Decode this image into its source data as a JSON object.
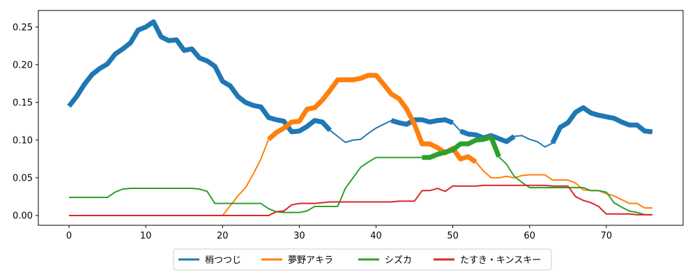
{
  "chart_data": {
    "type": "line",
    "title": "",
    "xlabel": "",
    "ylabel": "",
    "xlim": [
      -4,
      80
    ],
    "ylim": [
      -0.013,
      0.272
    ],
    "xticks": [
      0,
      10,
      20,
      30,
      40,
      50,
      60,
      70
    ],
    "yticks": [
      0.0,
      0.05,
      0.1,
      0.15,
      0.2,
      0.25
    ],
    "grid": false,
    "legend_position": "bottom-center",
    "series": [
      {
        "name": "梢つつじ",
        "color": "#1f77b4",
        "points": [
          [
            0,
            0.145
          ],
          [
            1,
            0.158
          ],
          [
            2,
            0.174
          ],
          [
            3,
            0.187
          ],
          [
            4,
            0.195
          ],
          [
            5,
            0.201
          ],
          [
            6,
            0.214
          ],
          [
            7,
            0.221
          ],
          [
            8,
            0.229
          ],
          [
            9,
            0.246
          ],
          [
            10,
            0.25
          ],
          [
            11,
            0.257
          ],
          [
            12,
            0.237
          ],
          [
            13,
            0.232
          ],
          [
            14,
            0.233
          ],
          [
            15,
            0.219
          ],
          [
            16,
            0.221
          ],
          [
            17,
            0.209
          ],
          [
            18,
            0.205
          ],
          [
            19,
            0.198
          ],
          [
            20,
            0.178
          ],
          [
            21,
            0.172
          ],
          [
            22,
            0.158
          ],
          [
            23,
            0.15
          ],
          [
            24,
            0.146
          ],
          [
            25,
            0.144
          ],
          [
            26,
            0.13
          ],
          [
            27,
            0.127
          ],
          [
            28,
            0.125
          ],
          [
            29,
            0.111
          ],
          [
            30,
            0.112
          ],
          [
            31,
            0.118
          ],
          [
            32,
            0.126
          ],
          [
            33,
            0.124
          ],
          [
            34,
            0.113
          ],
          [
            35,
            0.105
          ],
          [
            36,
            0.097
          ],
          [
            37,
            0.1
          ],
          [
            38,
            0.101
          ],
          [
            39,
            0.109
          ],
          [
            40,
            0.116
          ],
          [
            41,
            0.121
          ],
          [
            42,
            0.126
          ],
          [
            43,
            0.123
          ],
          [
            44,
            0.121
          ],
          [
            45,
            0.127
          ],
          [
            46,
            0.127
          ],
          [
            47,
            0.124
          ],
          [
            48,
            0.126
          ],
          [
            49,
            0.127
          ],
          [
            50,
            0.123
          ],
          [
            51,
            0.112
          ],
          [
            52,
            0.108
          ],
          [
            53,
            0.107
          ],
          [
            54,
            0.103
          ],
          [
            55,
            0.106
          ],
          [
            56,
            0.102
          ],
          [
            57,
            0.098
          ],
          [
            58,
            0.105
          ],
          [
            59,
            0.106
          ],
          [
            60,
            0.101
          ],
          [
            61,
            0.098
          ],
          [
            62,
            0.091
          ],
          [
            63,
            0.096
          ],
          [
            64,
            0.117
          ],
          [
            65,
            0.123
          ],
          [
            66,
            0.137
          ],
          [
            67,
            0.143
          ],
          [
            68,
            0.136
          ],
          [
            69,
            0.133
          ],
          [
            70,
            0.131
          ],
          [
            71,
            0.129
          ],
          [
            72,
            0.124
          ],
          [
            73,
            0.12
          ],
          [
            74,
            0.12
          ],
          [
            75,
            0.112
          ],
          [
            76,
            0.111
          ]
        ],
        "thick_segments": [
          [
            0,
            34
          ],
          [
            42,
            50
          ],
          [
            51,
            58
          ],
          [
            63,
            76
          ]
        ]
      },
      {
        "name": "夢野アキラ",
        "color": "#ff7f0e",
        "points": [
          [
            0,
            0
          ],
          [
            1,
            0
          ],
          [
            2,
            0
          ],
          [
            3,
            0
          ],
          [
            4,
            0
          ],
          [
            5,
            0
          ],
          [
            6,
            0
          ],
          [
            7,
            0
          ],
          [
            8,
            0
          ],
          [
            9,
            0
          ],
          [
            10,
            0
          ],
          [
            11,
            0
          ],
          [
            12,
            0
          ],
          [
            13,
            0
          ],
          [
            14,
            0
          ],
          [
            15,
            0
          ],
          [
            16,
            0
          ],
          [
            17,
            0
          ],
          [
            18,
            0
          ],
          [
            19,
            0
          ],
          [
            20,
            0
          ],
          [
            21,
            0.013
          ],
          [
            22,
            0.026
          ],
          [
            23,
            0.037
          ],
          [
            24,
            0.055
          ],
          [
            25,
            0.075
          ],
          [
            26,
            0.101
          ],
          [
            27,
            0.11
          ],
          [
            28,
            0.116
          ],
          [
            29,
            0.124
          ],
          [
            30,
            0.125
          ],
          [
            31,
            0.141
          ],
          [
            32,
            0.143
          ],
          [
            33,
            0.153
          ],
          [
            34,
            0.166
          ],
          [
            35,
            0.18
          ],
          [
            36,
            0.18
          ],
          [
            37,
            0.18
          ],
          [
            38,
            0.182
          ],
          [
            39,
            0.186
          ],
          [
            40,
            0.186
          ],
          [
            41,
            0.174
          ],
          [
            42,
            0.161
          ],
          [
            43,
            0.155
          ],
          [
            44,
            0.141
          ],
          [
            45,
            0.121
          ],
          [
            46,
            0.095
          ],
          [
            47,
            0.095
          ],
          [
            48,
            0.09
          ],
          [
            49,
            0.083
          ],
          [
            50,
            0.089
          ],
          [
            51,
            0.075
          ],
          [
            52,
            0.078
          ],
          [
            53,
            0.071
          ],
          [
            54,
            0.059
          ],
          [
            55,
            0.05
          ],
          [
            56,
            0.05
          ],
          [
            57,
            0.052
          ],
          [
            58,
            0.05
          ],
          [
            59,
            0.053
          ],
          [
            60,
            0.054
          ],
          [
            61,
            0.054
          ],
          [
            62,
            0.054
          ],
          [
            63,
            0.047
          ],
          [
            64,
            0.047
          ],
          [
            65,
            0.047
          ],
          [
            66,
            0.043
          ],
          [
            67,
            0.034
          ],
          [
            68,
            0.033
          ],
          [
            69,
            0.033
          ],
          [
            70,
            0.029
          ],
          [
            71,
            0.026
          ],
          [
            72,
            0.021
          ],
          [
            73,
            0.016
          ],
          [
            74,
            0.016
          ],
          [
            75,
            0.01
          ],
          [
            76,
            0.01
          ]
        ],
        "thick_segments": [
          [
            26,
            53
          ]
        ]
      },
      {
        "name": "シズカ",
        "color": "#2ca02c",
        "points": [
          [
            0,
            0.024
          ],
          [
            1,
            0.024
          ],
          [
            2,
            0.024
          ],
          [
            3,
            0.024
          ],
          [
            4,
            0.024
          ],
          [
            5,
            0.024
          ],
          [
            6,
            0.031
          ],
          [
            7,
            0.035
          ],
          [
            8,
            0.036
          ],
          [
            9,
            0.036
          ],
          [
            10,
            0.036
          ],
          [
            11,
            0.036
          ],
          [
            12,
            0.036
          ],
          [
            13,
            0.036
          ],
          [
            14,
            0.036
          ],
          [
            15,
            0.036
          ],
          [
            16,
            0.036
          ],
          [
            17,
            0.035
          ],
          [
            18,
            0.032
          ],
          [
            19,
            0.016
          ],
          [
            20,
            0.016
          ],
          [
            21,
            0.016
          ],
          [
            22,
            0.016
          ],
          [
            23,
            0.016
          ],
          [
            24,
            0.016
          ],
          [
            25,
            0.016
          ],
          [
            26,
            0.009
          ],
          [
            27,
            0.005
          ],
          [
            28,
            0.004
          ],
          [
            29,
            0.004
          ],
          [
            30,
            0.004
          ],
          [
            31,
            0.006
          ],
          [
            32,
            0.012
          ],
          [
            33,
            0.012
          ],
          [
            34,
            0.012
          ],
          [
            35,
            0.012
          ],
          [
            36,
            0.036
          ],
          [
            37,
            0.05
          ],
          [
            38,
            0.064
          ],
          [
            39,
            0.071
          ],
          [
            40,
            0.077
          ],
          [
            41,
            0.077
          ],
          [
            42,
            0.077
          ],
          [
            43,
            0.077
          ],
          [
            44,
            0.077
          ],
          [
            45,
            0.077
          ],
          [
            46,
            0.077
          ],
          [
            47,
            0.077
          ],
          [
            48,
            0.081
          ],
          [
            49,
            0.084
          ],
          [
            50,
            0.087
          ],
          [
            51,
            0.095
          ],
          [
            52,
            0.095
          ],
          [
            53,
            0.1
          ],
          [
            54,
            0.101
          ],
          [
            55,
            0.104
          ],
          [
            56,
            0.078
          ],
          [
            57,
            0.068
          ],
          [
            58,
            0.052
          ],
          [
            59,
            0.044
          ],
          [
            60,
            0.037
          ],
          [
            61,
            0.037
          ],
          [
            62,
            0.037
          ],
          [
            63,
            0.037
          ],
          [
            64,
            0.037
          ],
          [
            65,
            0.037
          ],
          [
            66,
            0.037
          ],
          [
            67,
            0.037
          ],
          [
            68,
            0.033
          ],
          [
            69,
            0.033
          ],
          [
            70,
            0.031
          ],
          [
            71,
            0.017
          ],
          [
            72,
            0.011
          ],
          [
            73,
            0.006
          ],
          [
            74,
            0.004
          ],
          [
            75,
            0.001
          ],
          [
            76,
            0.001
          ]
        ],
        "thick_segments": [
          [
            46,
            56
          ]
        ]
      },
      {
        "name": "たすき・キンスキー",
        "color": "#d62728",
        "points": [
          [
            0,
            0
          ],
          [
            1,
            0
          ],
          [
            2,
            0
          ],
          [
            3,
            0
          ],
          [
            4,
            0
          ],
          [
            5,
            0
          ],
          [
            6,
            0
          ],
          [
            7,
            0
          ],
          [
            8,
            0
          ],
          [
            9,
            0
          ],
          [
            10,
            0
          ],
          [
            11,
            0
          ],
          [
            12,
            0
          ],
          [
            13,
            0
          ],
          [
            14,
            0
          ],
          [
            15,
            0
          ],
          [
            16,
            0
          ],
          [
            17,
            0
          ],
          [
            18,
            0
          ],
          [
            19,
            0
          ],
          [
            20,
            0
          ],
          [
            21,
            0
          ],
          [
            22,
            0
          ],
          [
            23,
            0
          ],
          [
            24,
            0
          ],
          [
            25,
            0
          ],
          [
            26,
            0
          ],
          [
            27,
            0.005
          ],
          [
            28,
            0.006
          ],
          [
            29,
            0.014
          ],
          [
            30,
            0.016
          ],
          [
            31,
            0.016
          ],
          [
            32,
            0.016
          ],
          [
            33,
            0.017
          ],
          [
            34,
            0.018
          ],
          [
            35,
            0.018
          ],
          [
            36,
            0.018
          ],
          [
            37,
            0.018
          ],
          [
            38,
            0.018
          ],
          [
            39,
            0.018
          ],
          [
            40,
            0.018
          ],
          [
            41,
            0.018
          ],
          [
            42,
            0.018
          ],
          [
            43,
            0.019
          ],
          [
            44,
            0.019
          ],
          [
            45,
            0.019
          ],
          [
            46,
            0.033
          ],
          [
            47,
            0.033
          ],
          [
            48,
            0.036
          ],
          [
            49,
            0.032
          ],
          [
            50,
            0.039
          ],
          [
            51,
            0.039
          ],
          [
            52,
            0.039
          ],
          [
            53,
            0.039
          ],
          [
            54,
            0.04
          ],
          [
            55,
            0.04
          ],
          [
            56,
            0.04
          ],
          [
            57,
            0.04
          ],
          [
            58,
            0.04
          ],
          [
            59,
            0.04
          ],
          [
            60,
            0.04
          ],
          [
            61,
            0.04
          ],
          [
            62,
            0.04
          ],
          [
            63,
            0.039
          ],
          [
            64,
            0.039
          ],
          [
            65,
            0.039
          ],
          [
            66,
            0.025
          ],
          [
            67,
            0.02
          ],
          [
            68,
            0.017
          ],
          [
            69,
            0.012
          ],
          [
            70,
            0.002
          ],
          [
            71,
            0.002
          ],
          [
            72,
            0.002
          ],
          [
            73,
            0.002
          ],
          [
            74,
            0.001
          ],
          [
            75,
            0.001
          ],
          [
            76,
            0.001
          ]
        ],
        "thick_segments": []
      }
    ]
  }
}
